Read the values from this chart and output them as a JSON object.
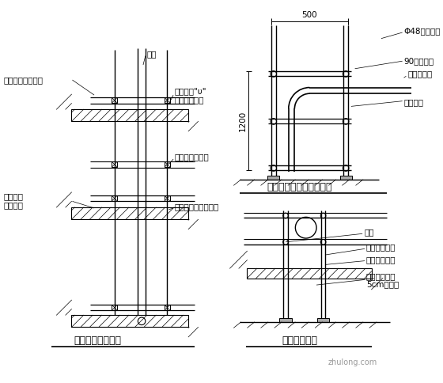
{
  "bg_color": "#ffffff",
  "line_color": "#000000",
  "title1": "泵管穿楼板固定图",
  "title2": "水平泵管固定",
  "title3": "水平泵管垂直上弯处固定",
  "label_pump_pipe": "泵管",
  "label_wood_clamp1": "木楔子将泵管固定",
  "label_wood_clamp2": "木楔子将泵管固定",
  "label_frame_top_l1": "架子管和\"υ\"",
  "label_frame_top_l2": "托与楼板顶紧",
  "label_frame_pad": "架子上下垫方木",
  "label_frame_clamp": "架子管托住泵管卡子",
  "label_phi48": "Φ48钢管支架",
  "label_90bend": "90度弯头管",
  "label_horiz_support": "水平管支撑",
  "label_steel_frame": "钢管支架",
  "label_pump_pipe2": "泵管",
  "label_pipe_clamp": "管卡附近搭设",
  "label_steel_fix": "钢管支架固定",
  "label_concrete_l1": "砼楼面上需加",
  "label_concrete_l2": "5cm厚垫板",
  "dim_500": "500",
  "dim_1200": "1200",
  "font_size": 7.5,
  "title_font_size": 9
}
